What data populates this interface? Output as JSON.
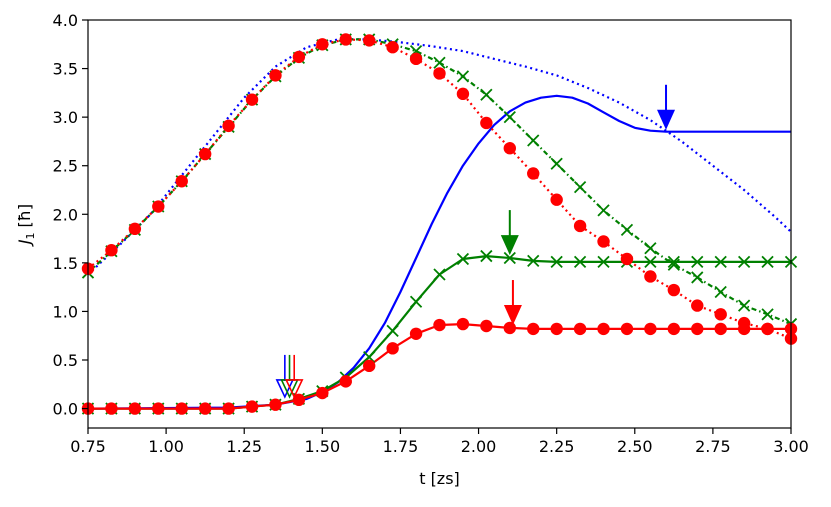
{
  "chart_data": {
    "type": "line",
    "title": "",
    "xlabel": "t [zs]",
    "ylabel_main": "J",
    "ylabel_sub": "1",
    "ylabel_unit": "[ħ]",
    "xlim": [
      0.75,
      3.0
    ],
    "ylim": [
      -0.2,
      4.0
    ],
    "xticks": [
      "0.75",
      "1.00",
      "1.25",
      "1.50",
      "1.75",
      "2.00",
      "2.25",
      "2.50",
      "2.75",
      "3.00"
    ],
    "yticks": [
      "0.0",
      "0.5",
      "1.0",
      "1.5",
      "2.0",
      "2.5",
      "3.0",
      "3.5",
      "4.0"
    ],
    "xtick_values": [
      0.75,
      1.0,
      1.25,
      1.5,
      1.75,
      2.0,
      2.25,
      2.5,
      2.75,
      3.0
    ],
    "ytick_values": [
      0.0,
      0.5,
      1.0,
      1.5,
      2.0,
      2.5,
      3.0,
      3.5,
      4.0
    ],
    "series": [
      {
        "name": "blue-dotted",
        "color": "#0000ff",
        "style": "dotted",
        "marker": "none",
        "x": [
          0.75,
          0.85,
          0.95,
          1.05,
          1.15,
          1.25,
          1.35,
          1.45,
          1.55,
          1.65,
          1.75,
          1.85,
          1.95,
          2.05,
          2.15,
          2.25,
          2.35,
          2.45,
          2.55,
          2.65,
          2.75,
          2.85,
          2.95,
          3.0
        ],
        "y": [
          1.38,
          1.68,
          2.0,
          2.4,
          2.8,
          3.2,
          3.52,
          3.72,
          3.8,
          3.8,
          3.77,
          3.73,
          3.68,
          3.6,
          3.52,
          3.43,
          3.3,
          3.15,
          2.97,
          2.75,
          2.5,
          2.25,
          1.97,
          1.82
        ]
      },
      {
        "name": "blue-solid",
        "color": "#0000ff",
        "style": "solid",
        "marker": "none",
        "x": [
          0.75,
          1.2,
          1.35,
          1.45,
          1.5,
          1.55,
          1.6,
          1.65,
          1.7,
          1.75,
          1.8,
          1.85,
          1.9,
          1.95,
          2.0,
          2.05,
          2.1,
          2.15,
          2.2,
          2.25,
          2.3,
          2.35,
          2.4,
          2.45,
          2.5,
          2.55,
          2.6,
          2.65,
          2.7,
          2.8,
          2.9,
          3.0
        ],
        "y": [
          0.0,
          0.01,
          0.04,
          0.1,
          0.17,
          0.27,
          0.42,
          0.62,
          0.88,
          1.2,
          1.55,
          1.9,
          2.22,
          2.5,
          2.73,
          2.92,
          3.06,
          3.15,
          3.2,
          3.22,
          3.2,
          3.14,
          3.05,
          2.96,
          2.89,
          2.86,
          2.85,
          2.85,
          2.85,
          2.85,
          2.85,
          2.85
        ]
      },
      {
        "name": "green-dotted-x",
        "color": "#008000",
        "style": "dashdot",
        "marker": "x",
        "x": [
          0.75,
          0.825,
          0.9,
          0.975,
          1.05,
          1.125,
          1.2,
          1.275,
          1.35,
          1.425,
          1.5,
          1.575,
          1.65,
          1.725,
          1.8,
          1.875,
          1.95,
          2.025,
          2.1,
          2.175,
          2.25,
          2.325,
          2.4,
          2.475,
          2.55,
          2.625,
          2.7,
          2.775,
          2.85,
          2.925,
          3.0
        ],
        "y": [
          1.4,
          1.62,
          1.84,
          2.08,
          2.34,
          2.62,
          2.9,
          3.18,
          3.42,
          3.61,
          3.74,
          3.8,
          3.8,
          3.75,
          3.68,
          3.56,
          3.42,
          3.23,
          3.0,
          2.76,
          2.52,
          2.28,
          2.04,
          1.84,
          1.65,
          1.48,
          1.35,
          1.2,
          1.06,
          0.97,
          0.87
        ]
      },
      {
        "name": "green-solid-x",
        "color": "#008000",
        "style": "solid",
        "marker": "x",
        "x": [
          0.75,
          0.825,
          0.9,
          0.975,
          1.05,
          1.125,
          1.2,
          1.275,
          1.35,
          1.425,
          1.5,
          1.575,
          1.65,
          1.725,
          1.8,
          1.875,
          1.95,
          2.025,
          2.1,
          2.175,
          2.25,
          2.325,
          2.4,
          2.475,
          2.55,
          2.625,
          2.7,
          2.775,
          2.85,
          2.925,
          3.0
        ],
        "y": [
          0.0,
          0.0,
          0.0,
          0.0,
          0.0,
          0.0,
          0.0,
          0.02,
          0.04,
          0.1,
          0.18,
          0.32,
          0.53,
          0.8,
          1.1,
          1.38,
          1.54,
          1.57,
          1.55,
          1.52,
          1.51,
          1.51,
          1.51,
          1.51,
          1.51,
          1.51,
          1.51,
          1.51,
          1.51,
          1.51,
          1.51
        ]
      },
      {
        "name": "red-dotted-circle",
        "color": "#ff0000",
        "style": "dotted",
        "marker": "o",
        "x": [
          0.75,
          0.825,
          0.9,
          0.975,
          1.05,
          1.125,
          1.2,
          1.275,
          1.35,
          1.425,
          1.5,
          1.575,
          1.65,
          1.725,
          1.8,
          1.875,
          1.95,
          2.025,
          2.1,
          2.175,
          2.25,
          2.325,
          2.4,
          2.475,
          2.55,
          2.625,
          2.7,
          2.775,
          2.85,
          2.925,
          3.0
        ],
        "y": [
          1.44,
          1.63,
          1.85,
          2.08,
          2.34,
          2.62,
          2.91,
          3.18,
          3.43,
          3.62,
          3.75,
          3.8,
          3.79,
          3.72,
          3.6,
          3.45,
          3.24,
          2.94,
          2.68,
          2.42,
          2.15,
          1.88,
          1.72,
          1.54,
          1.36,
          1.22,
          1.06,
          0.97,
          0.88,
          0.82,
          0.72
        ]
      },
      {
        "name": "red-solid-circle",
        "color": "#ff0000",
        "style": "solid",
        "marker": "o",
        "x": [
          0.75,
          0.825,
          0.9,
          0.975,
          1.05,
          1.125,
          1.2,
          1.275,
          1.35,
          1.425,
          1.5,
          1.575,
          1.65,
          1.725,
          1.8,
          1.875,
          1.95,
          2.025,
          2.1,
          2.175,
          2.25,
          2.325,
          2.4,
          2.475,
          2.55,
          2.625,
          2.7,
          2.775,
          2.85,
          2.925,
          3.0
        ],
        "y": [
          0.0,
          0.0,
          0.0,
          0.0,
          0.0,
          0.0,
          0.0,
          0.02,
          0.04,
          0.09,
          0.16,
          0.28,
          0.44,
          0.62,
          0.77,
          0.86,
          0.87,
          0.85,
          0.83,
          0.82,
          0.82,
          0.82,
          0.82,
          0.82,
          0.82,
          0.82,
          0.82,
          0.82,
          0.82,
          0.82,
          0.82
        ]
      }
    ],
    "annotations": [
      {
        "name": "blue-hollow-arrow",
        "color": "#0000ff",
        "x": 1.38,
        "y_tip": 0.12,
        "filled": false
      },
      {
        "name": "green-hollow-arrow",
        "color": "#008000",
        "x": 1.395,
        "y_tip": 0.12,
        "filled": false
      },
      {
        "name": "red-hollow-arrow",
        "color": "#ff0000",
        "x": 1.41,
        "y_tip": 0.12,
        "filled": false
      },
      {
        "name": "blue-filled-arrow",
        "color": "#0000ff",
        "x": 2.6,
        "y_tip": 2.87,
        "filled": true
      },
      {
        "name": "green-filled-arrow",
        "color": "#008000",
        "x": 2.1,
        "y_tip": 1.58,
        "filled": true
      },
      {
        "name": "red-filled-arrow",
        "color": "#ff0000",
        "x": 2.11,
        "y_tip": 0.86,
        "filled": true
      }
    ]
  }
}
